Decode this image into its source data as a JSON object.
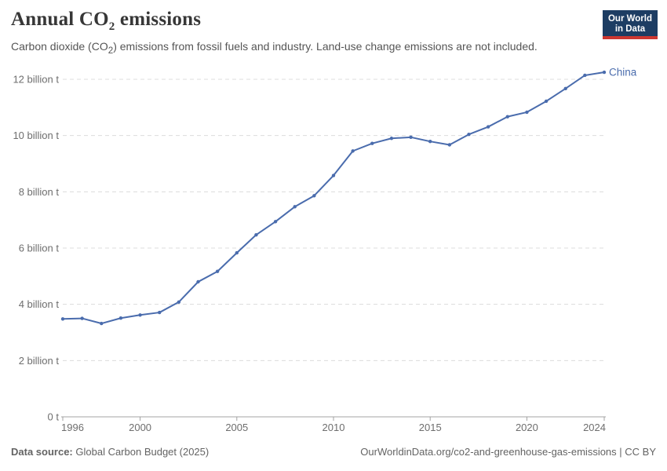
{
  "header": {
    "title_full": "Annual CO₂ emissions",
    "title_parts": {
      "pre": "Annual CO",
      "sub": "2",
      "post": " emissions"
    },
    "subtitle_full": "Carbon dioxide (CO₂) emissions from fossil fuels and industry. Land-use change emissions are not included.",
    "subtitle_parts": {
      "pre": "Carbon dioxide (CO",
      "sub": "2",
      "post": ") emissions from fossil fuels and industry. Land-use change emissions are not included."
    },
    "logo": {
      "line1": "Our World",
      "line2": "in Data",
      "bg_color": "#1d3d63",
      "bar_color": "#cd3731"
    }
  },
  "chart_data": {
    "type": "line",
    "title": "Annual CO₂ emissions",
    "xlabel": "",
    "ylabel": "",
    "x": [
      1996,
      1997,
      1998,
      1999,
      2000,
      2001,
      2002,
      2003,
      2004,
      2005,
      2006,
      2007,
      2008,
      2009,
      2010,
      2011,
      2012,
      2013,
      2014,
      2015,
      2016,
      2017,
      2018,
      2019,
      2020,
      2021,
      2022,
      2023,
      2024
    ],
    "series": [
      {
        "name": "China",
        "color": "#4a6cad",
        "unit": "billion t",
        "values": [
          3.48,
          3.5,
          3.32,
          3.51,
          3.62,
          3.71,
          4.08,
          4.8,
          5.17,
          5.83,
          6.47,
          6.94,
          7.47,
          7.86,
          8.58,
          9.45,
          9.72,
          9.9,
          9.94,
          9.79,
          9.67,
          10.04,
          10.31,
          10.67,
          10.83,
          11.22,
          11.67,
          12.14,
          12.25
        ]
      }
    ],
    "xticks": [
      1996,
      2000,
      2005,
      2010,
      2015,
      2020,
      2024
    ],
    "yticks": [
      {
        "value": 0,
        "label": "0 t"
      },
      {
        "value": 2,
        "label": "2 billion t"
      },
      {
        "value": 4,
        "label": "4 billion t"
      },
      {
        "value": 6,
        "label": "6 billion t"
      },
      {
        "value": 8,
        "label": "8 billion t"
      },
      {
        "value": 10,
        "label": "10 billion t"
      },
      {
        "value": 12,
        "label": "12 billion t"
      }
    ],
    "xlim": [
      1996,
      2024
    ],
    "ylim": [
      0,
      12
    ],
    "grid": "horizontal-dashed",
    "legend_position": "end-of-line",
    "colors": {
      "grid": "#dcdcdc",
      "axis": "#a3a3a3",
      "tick_label": "#6e6e6e"
    }
  },
  "footer": {
    "source_label": "Data source:",
    "source_value": "Global Carbon Budget (2025)",
    "right_text": "OurWorldinData.org/co2-and-greenhouse-gas-emissions | CC BY"
  }
}
